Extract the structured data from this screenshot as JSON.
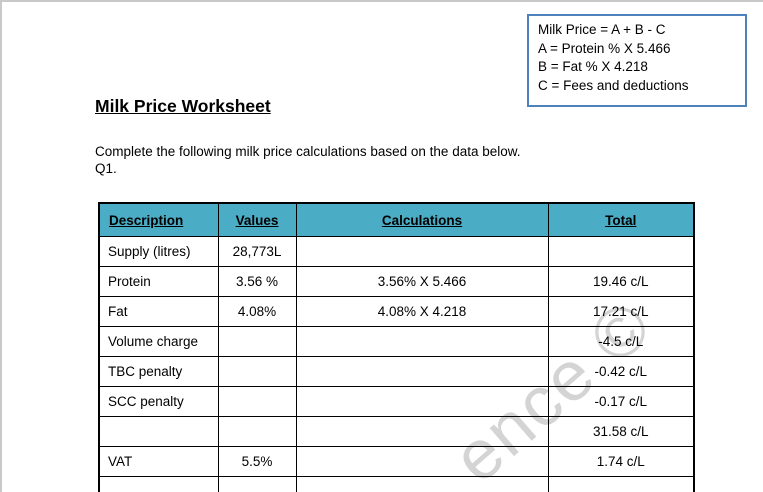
{
  "page": {
    "title": "Milk Price Worksheet",
    "instruction": "Complete the following milk price calculations based on the data below.",
    "question_label": "Q1."
  },
  "formula_box": {
    "lines": [
      "Milk Price = A + B - C",
      "A = Protein % X 5.466",
      "B = Fat % X 4.218",
      "C = Fees and deductions"
    ]
  },
  "table": {
    "columns": [
      "Description",
      "Values",
      "Calculations",
      "Total"
    ],
    "rows": [
      {
        "description": "Supply (litres)",
        "values": "28,773L",
        "calculations": "",
        "total": ""
      },
      {
        "description": "Protein",
        "values": "3.56 %",
        "calculations": "3.56% X 5.466",
        "total": "19.46 c/L"
      },
      {
        "description": "Fat",
        "values": "4.08%",
        "calculations": "4.08% X 4.218",
        "total": "17.21 c/L"
      },
      {
        "description": "Volume charge",
        "values": "",
        "calculations": "",
        "total": "-4.5 c/L"
      },
      {
        "description": "TBC penalty",
        "values": "",
        "calculations": "",
        "total": "-0.42 c/L"
      },
      {
        "description": "SCC penalty",
        "values": "",
        "calculations": "",
        "total": "-0.17 c/L"
      },
      {
        "description": "",
        "values": "",
        "calculations": "",
        "total": "31.58 c/L"
      },
      {
        "description": "VAT",
        "values": "5.5%",
        "calculations": "",
        "total": "1.74 c/L"
      },
      {
        "description": "",
        "values": "",
        "calculations": "",
        "total": ""
      }
    ]
  },
  "watermark": {
    "text": "ence ©"
  },
  "colors": {
    "table_header_bg": "#4bacc6",
    "formula_box_border": "#4f81bd",
    "page_edge_border": "#c9c9c9",
    "watermark_text": "#d4d4d4"
  }
}
